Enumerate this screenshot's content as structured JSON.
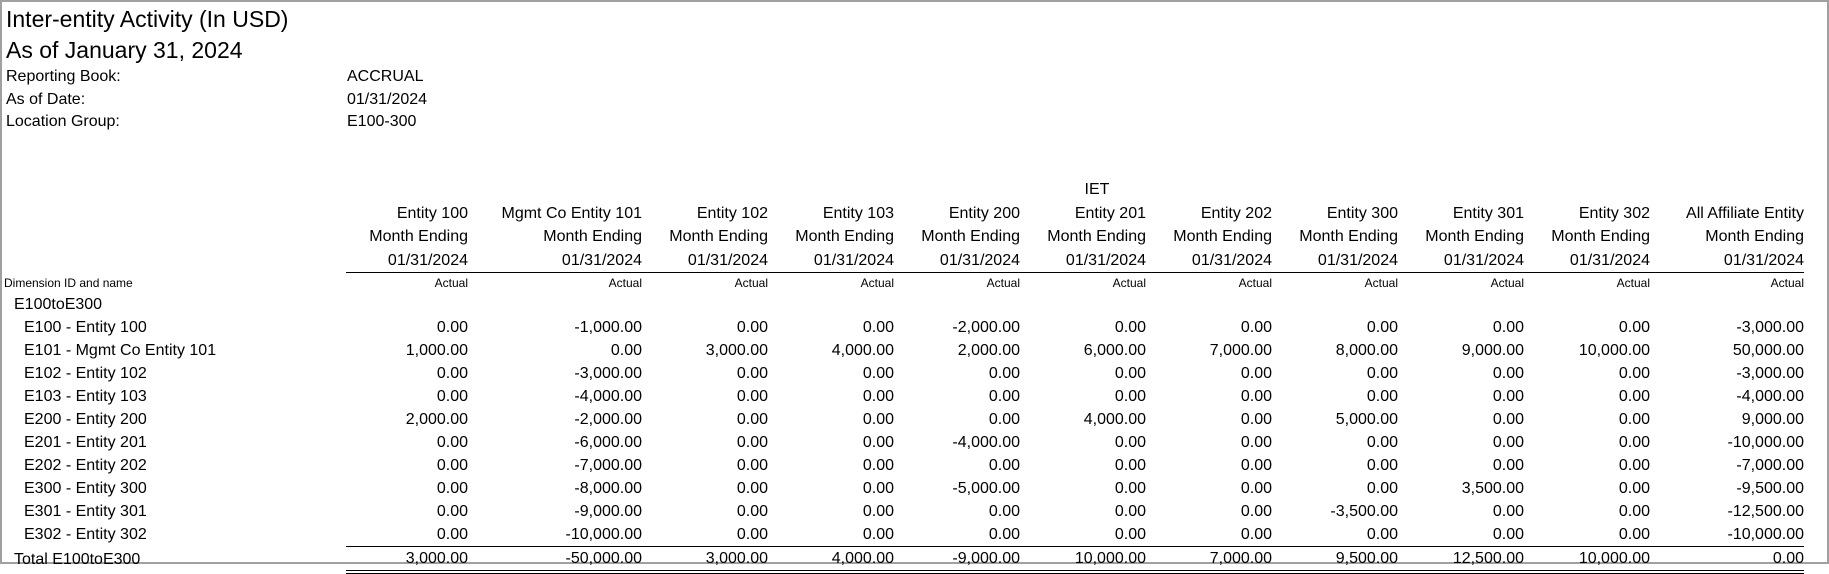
{
  "report": {
    "title": "Inter-entity Activity (In USD)",
    "subtitle": "As of January 31, 2024",
    "meta": [
      {
        "label": "Reporting Book:",
        "value": "ACCRUAL"
      },
      {
        "label": "As of Date:",
        "value": "01/31/2024"
      },
      {
        "label": "Location Group:",
        "value": "E100-300"
      }
    ]
  },
  "table": {
    "group_header": "IET",
    "dimension_label": "Dimension ID and name",
    "columns": [
      {
        "name": "Entity 100",
        "period": "Month Ending",
        "date": "01/31/2024",
        "type": "Actual"
      },
      {
        "name": "Mgmt Co Entity 101",
        "period": "Month Ending",
        "date": "01/31/2024",
        "type": "Actual"
      },
      {
        "name": "Entity 102",
        "period": "Month Ending",
        "date": "01/31/2024",
        "type": "Actual"
      },
      {
        "name": "Entity 103",
        "period": "Month Ending",
        "date": "01/31/2024",
        "type": "Actual"
      },
      {
        "name": "Entity 200",
        "period": "Month Ending",
        "date": "01/31/2024",
        "type": "Actual"
      },
      {
        "name": "Entity 201",
        "period": "Month Ending",
        "date": "01/31/2024",
        "type": "Actual"
      },
      {
        "name": "Entity 202",
        "period": "Month Ending",
        "date": "01/31/2024",
        "type": "Actual"
      },
      {
        "name": "Entity 300",
        "period": "Month Ending",
        "date": "01/31/2024",
        "type": "Actual"
      },
      {
        "name": "Entity 301",
        "period": "Month Ending",
        "date": "01/31/2024",
        "type": "Actual"
      },
      {
        "name": "Entity 302",
        "period": "Month Ending",
        "date": "01/31/2024",
        "type": "Actual"
      },
      {
        "name": "All Affiliate Entity",
        "period": "Month Ending",
        "date": "01/31/2024",
        "type": "Actual"
      }
    ],
    "group_label": "E100toE300",
    "rows": [
      {
        "label": "E100 - Entity 100",
        "values": [
          "0.00",
          "-1,000.00",
          "0.00",
          "0.00",
          "-2,000.00",
          "0.00",
          "0.00",
          "0.00",
          "0.00",
          "0.00",
          "-3,000.00"
        ]
      },
      {
        "label": "E101 - Mgmt Co Entity 101",
        "values": [
          "1,000.00",
          "0.00",
          "3,000.00",
          "4,000.00",
          "2,000.00",
          "6,000.00",
          "7,000.00",
          "8,000.00",
          "9,000.00",
          "10,000.00",
          "50,000.00"
        ]
      },
      {
        "label": "E102 - Entity 102",
        "values": [
          "0.00",
          "-3,000.00",
          "0.00",
          "0.00",
          "0.00",
          "0.00",
          "0.00",
          "0.00",
          "0.00",
          "0.00",
          "-3,000.00"
        ]
      },
      {
        "label": "E103 - Entity 103",
        "values": [
          "0.00",
          "-4,000.00",
          "0.00",
          "0.00",
          "0.00",
          "0.00",
          "0.00",
          "0.00",
          "0.00",
          "0.00",
          "-4,000.00"
        ]
      },
      {
        "label": "E200 - Entity 200",
        "values": [
          "2,000.00",
          "-2,000.00",
          "0.00",
          "0.00",
          "0.00",
          "4,000.00",
          "0.00",
          "5,000.00",
          "0.00",
          "0.00",
          "9,000.00"
        ]
      },
      {
        "label": "E201 - Entity 201",
        "values": [
          "0.00",
          "-6,000.00",
          "0.00",
          "0.00",
          "-4,000.00",
          "0.00",
          "0.00",
          "0.00",
          "0.00",
          "0.00",
          "-10,000.00"
        ]
      },
      {
        "label": "E202 - Entity 202",
        "values": [
          "0.00",
          "-7,000.00",
          "0.00",
          "0.00",
          "0.00",
          "0.00",
          "0.00",
          "0.00",
          "0.00",
          "0.00",
          "-7,000.00"
        ]
      },
      {
        "label": "E300 - Entity 300",
        "values": [
          "0.00",
          "-8,000.00",
          "0.00",
          "0.00",
          "-5,000.00",
          "0.00",
          "0.00",
          "0.00",
          "3,500.00",
          "0.00",
          "-9,500.00"
        ]
      },
      {
        "label": "E301 - Entity 301",
        "values": [
          "0.00",
          "-9,000.00",
          "0.00",
          "0.00",
          "0.00",
          "0.00",
          "0.00",
          "-3,500.00",
          "0.00",
          "0.00",
          "-12,500.00"
        ]
      },
      {
        "label": "E302 - Entity 302",
        "values": [
          "0.00",
          "-10,000.00",
          "0.00",
          "0.00",
          "0.00",
          "0.00",
          "0.00",
          "0.00",
          "0.00",
          "0.00",
          "-10,000.00"
        ]
      }
    ],
    "total": {
      "label": "Total E100toE300",
      "values": [
        "3,000.00",
        "-50,000.00",
        "3,000.00",
        "4,000.00",
        "-9,000.00",
        "10,000.00",
        "7,000.00",
        "9,500.00",
        "12,500.00",
        "10,000.00",
        "0.00"
      ]
    }
  }
}
